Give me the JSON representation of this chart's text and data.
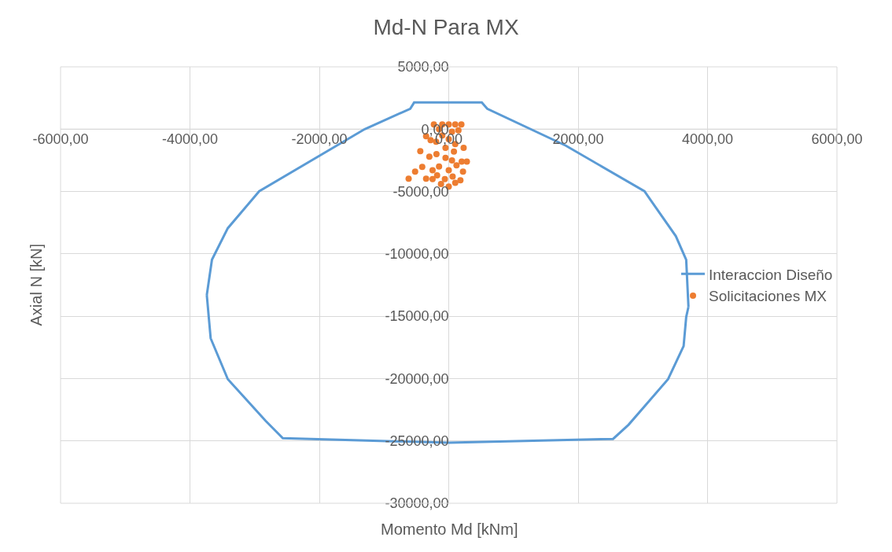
{
  "chart_data": {
    "type": "scatter",
    "title": "Md-N Para MX",
    "xlabel": "Momento Md [kNm]",
    "ylabel": "Axial N [kN]",
    "xlim": [
      -6000,
      6000
    ],
    "ylim": [
      -30000,
      5000
    ],
    "xticks": [
      {
        "value": -6000,
        "label": "-6000,00"
      },
      {
        "value": -4000,
        "label": "-4000,00"
      },
      {
        "value": -2000,
        "label": "-2000,00"
      },
      {
        "value": 0,
        "label": "0,00"
      },
      {
        "value": 2000,
        "label": "2000,00"
      },
      {
        "value": 4000,
        "label": "4000,00"
      },
      {
        "value": 6000,
        "label": "6000,00"
      }
    ],
    "yticks": [
      {
        "value": -30000,
        "label": "-30000,00"
      },
      {
        "value": -25000,
        "label": "-25000,00"
      },
      {
        "value": -20000,
        "label": "-20000,00"
      },
      {
        "value": -15000,
        "label": "-15000,00"
      },
      {
        "value": -10000,
        "label": "-10000,00"
      },
      {
        "value": -5000,
        "label": "-5000,00"
      },
      {
        "value": 0,
        "label": "0,00"
      },
      {
        "value": 5000,
        "label": "5000,00"
      }
    ],
    "grid": true,
    "legend": "right",
    "series": [
      {
        "name": "Interaccion Diseño",
        "type": "line",
        "color": "#5b9bd5",
        "marker": "none",
        "x": [
          -3740,
          -3660,
          -3415,
          -2930,
          -1300,
          -595,
          -535,
          0,
          510,
          595,
          1810,
          3025,
          3510,
          3670,
          3705,
          null,
          -3740,
          -3680,
          -3415,
          -2830,
          -2565,
          0,
          2540,
          2780,
          3390,
          3630,
          3670,
          3705
        ],
        "values": [
          -13300,
          -10470,
          -7940,
          -4980,
          0,
          1640,
          2140,
          2150,
          2140,
          1640,
          -1320,
          -4980,
          -8580,
          -10470,
          -14250,
          null,
          -13300,
          -16770,
          -20050,
          -23390,
          -24780,
          -25150,
          -24840,
          -23700,
          -20050,
          -17400,
          -15070,
          -14250
        ]
      },
      {
        "name": "Solicitaciones MX",
        "color": "#ed7d31",
        "marker": "circle",
        "x": [
          -230,
          -100,
          0,
          100,
          195,
          -150,
          50,
          150,
          -620,
          -520,
          -410,
          -350,
          -440,
          -350,
          -280,
          -195,
          -100,
          0,
          100,
          230,
          -190,
          -50,
          80,
          200,
          -150,
          0,
          120,
          220,
          -180,
          -60,
          60,
          180,
          -120,
          0,
          100,
          -50,
          50,
          -300,
          -250,
          280,
          -250
        ],
        "values": [
          380,
          380,
          380,
          380,
          380,
          0,
          -200,
          -100,
          -3970,
          -3400,
          -3030,
          -3970,
          -1770,
          -570,
          -880,
          -1000,
          -500,
          -800,
          -1200,
          -1500,
          -2000,
          -2300,
          -1800,
          -2600,
          -3000,
          -3300,
          -2900,
          -3400,
          -3700,
          -4000,
          -3800,
          -4100,
          -4400,
          -4600,
          -4300,
          -1500,
          -2500,
          -2200,
          -3300,
          -2600,
          -4000
        ]
      }
    ]
  }
}
